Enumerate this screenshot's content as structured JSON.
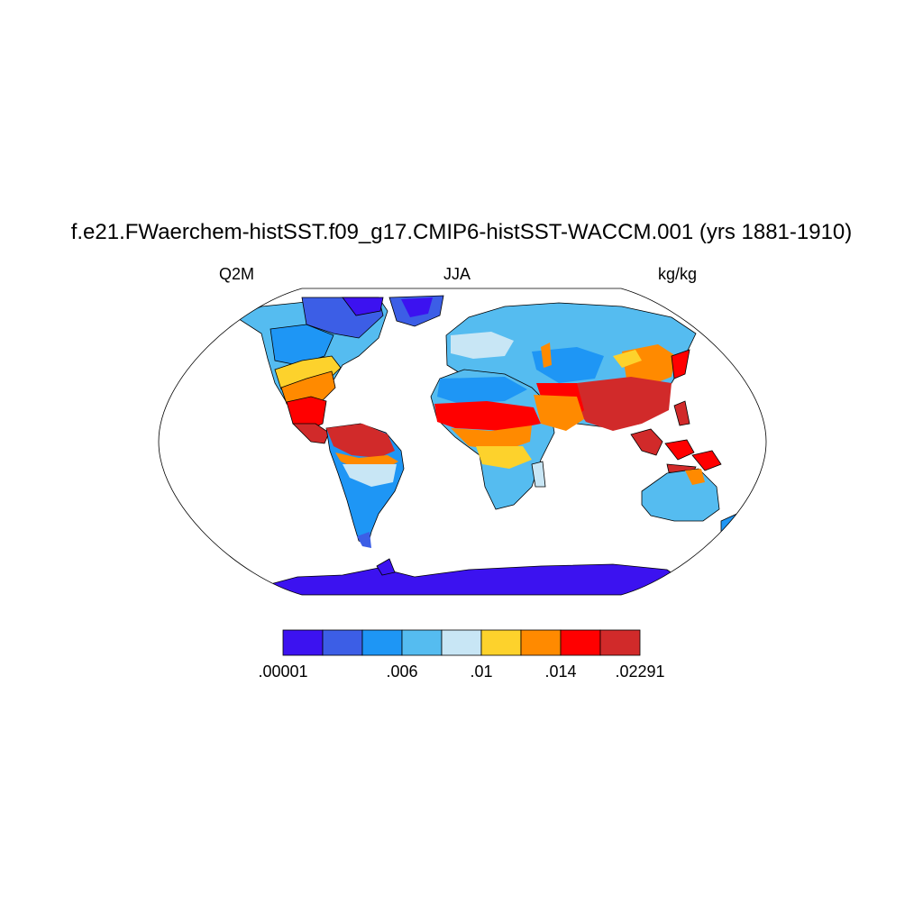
{
  "map": {
    "title": "f.e21.FWaerchem-histSST.f09_g17.CMIP6-histSST-WACCM.001 (yrs 1881-1910)",
    "left_label": "Q2M",
    "center_label": "JJA",
    "right_label": "kg/kg",
    "projection": "robinson"
  },
  "colorbar": {
    "colors": [
      "#3c12f0",
      "#3c5ee6",
      "#1e96f5",
      "#55bcf0",
      "#c8e6f5",
      "#fdd22c",
      "#ff8a00",
      "#ff0000",
      "#d12a2a"
    ],
    "labels": [
      {
        "text": ".00001",
        "index": 0
      },
      {
        "text": ".006",
        "index": 3
      },
      {
        "text": ".01",
        "index": 5
      },
      {
        "text": ".014",
        "index": 7
      },
      {
        "text": ".02291",
        "index": 9
      }
    ]
  }
}
